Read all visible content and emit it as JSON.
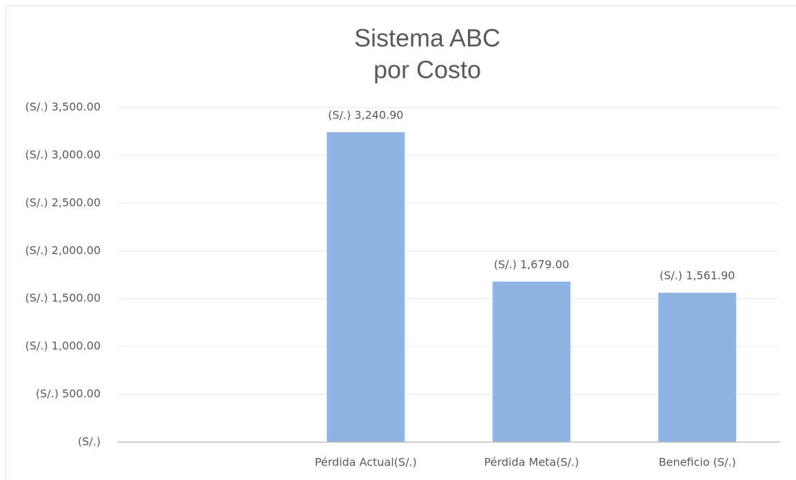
{
  "chart_data": {
    "type": "bar",
    "title": [
      "Sistema ABC",
      "por Costo"
    ],
    "categories": [
      null,
      "Pérdida Actual(S/.)",
      "Pérdida Meta(S/.)",
      "Beneficio (S/.)"
    ],
    "values": [
      null,
      3240.9,
      1679,
      1561.9
    ],
    "value_labels": [
      null,
      "(S/.) 3,240.90",
      "(S/.) 1,679.00",
      "(S/.) 1,561.90"
    ],
    "color": "#8db4e2",
    "ylim": [
      0,
      3500
    ],
    "yticks": [
      {
        "value": 0,
        "label": "(S/.)"
      },
      {
        "value": 500,
        "label": "(S/.) 500.00"
      },
      {
        "value": 1000,
        "label": "(S/.) 1,000.00"
      },
      {
        "value": 1500,
        "label": "(S/.) 1,500.00"
      },
      {
        "value": 2000,
        "label": "(S/.) 2,000.00"
      },
      {
        "value": 2500,
        "label": "(S/.) 2,500.00"
      },
      {
        "value": 3000,
        "label": "(S/.) 3,000.00"
      },
      {
        "value": 3500,
        "label": "(S/.) 3,500.00"
      }
    ],
    "grid": true
  }
}
